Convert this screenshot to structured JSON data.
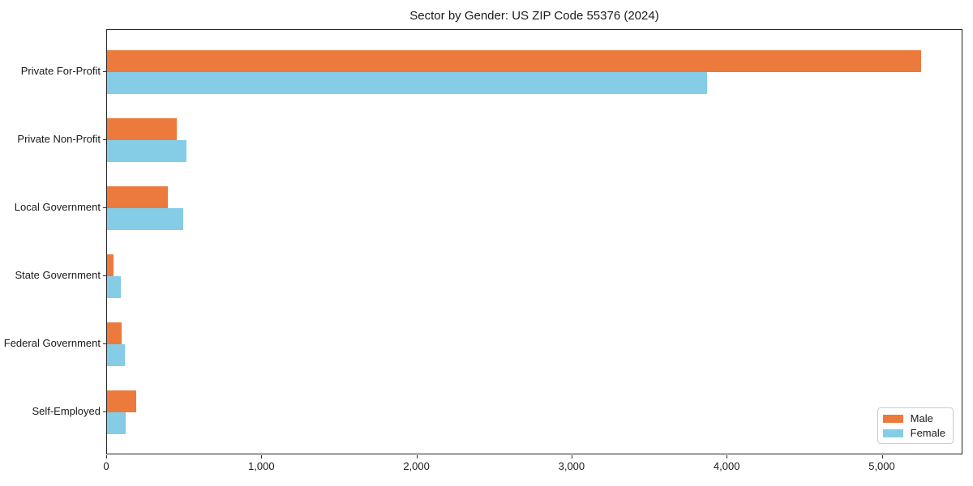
{
  "figure": {
    "background": "#ffffff",
    "text_color": "#1a1a1a",
    "spine_color": "#262626"
  },
  "chart_data": {
    "type": "bar",
    "orientation": "horizontal",
    "title": "Sector by Gender: US ZIP Code 55376 (2024)",
    "categories": [
      "Private For-Profit",
      "Private Non-Profit",
      "Local Government",
      "State Government",
      "Federal Government",
      "Self-Employed"
    ],
    "series": [
      {
        "name": "Male",
        "color": "#ec7a3d",
        "values": [
          5250,
          450,
          390,
          40,
          95,
          190
        ]
      },
      {
        "name": "Female",
        "color": "#85cde6",
        "values": [
          3870,
          510,
          490,
          90,
          115,
          120
        ]
      }
    ],
    "xlabel": "",
    "ylabel": "",
    "xlim": [
      0,
      5520
    ],
    "x_ticks": [
      0,
      1000,
      2000,
      3000,
      4000,
      5000
    ],
    "x_tick_labels": [
      "0",
      "1,000",
      "2,000",
      "3,000",
      "4,000",
      "5,000"
    ],
    "grid": false,
    "legend": {
      "position": "lower right",
      "entries": [
        "Male",
        "Female"
      ]
    }
  }
}
